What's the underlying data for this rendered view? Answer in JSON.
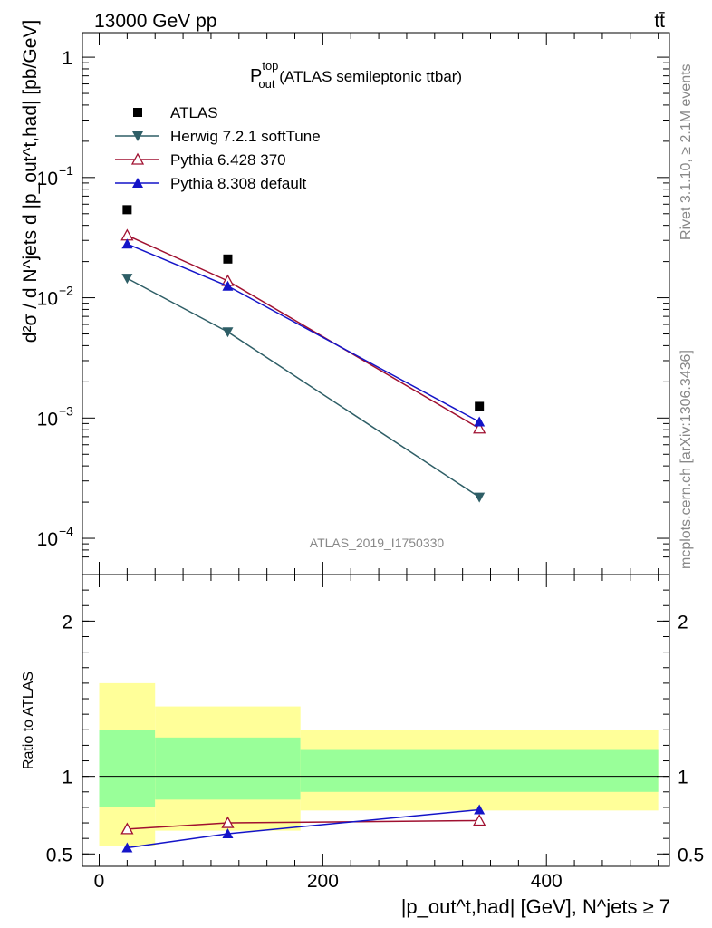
{
  "header": {
    "energy_label": "13000 GeV pp",
    "process_label": "tt̄"
  },
  "side_labels": {
    "rivet": "Rivet 3.1.10, ≥ 2.1M events",
    "mcplots": "mcplots.cern.ch [arXiv:1306.3436]"
  },
  "plot_title": {
    "main": "P",
    "sup": "top",
    "sub": "out",
    "rest": " (ATLAS semileptonic ttbar)"
  },
  "analysis_id": "ATLAS_2019_I1750330",
  "ylabel_main": "d²σ / d N^jets d |p_out^t,had| [pb/GeV]",
  "ylabel_ratio": "Ratio to ATLAS",
  "xlabel": "|p_out^t,had| [GeV], N^jets ≥ 7",
  "colors": {
    "atlas": "#000000",
    "herwig": "#2e5e66",
    "pythia6": "#a01030",
    "pythia8": "#1414c8",
    "band_outer": "#ffff99",
    "band_inner": "#99ff99"
  },
  "chart_data": [
    {
      "type": "scatter",
      "panel": "main",
      "yscale": "log",
      "ylim": [
        5e-05,
        1.6
      ],
      "xlim": [
        -15,
        510
      ],
      "yticks": [
        {
          "value": 1,
          "label": "1",
          "exp": ""
        },
        {
          "value": 0.1,
          "label": "10",
          "exp": "−1"
        },
        {
          "value": 0.01,
          "label": "10",
          "exp": "−2"
        },
        {
          "value": 0.001,
          "label": "10",
          "exp": "−3"
        },
        {
          "value": 0.0001,
          "label": "10",
          "exp": "−4"
        }
      ],
      "legend_position": "top-left",
      "series": [
        {
          "name": "ATLAS",
          "key": "atlas",
          "marker": "square",
          "line": false,
          "x": [
            25,
            115,
            340
          ],
          "y": [
            0.054,
            0.021,
            0.00125
          ]
        },
        {
          "name": "Herwig 7.2.1 softTune",
          "key": "herwig",
          "marker": "triangle-down",
          "line": true,
          "x": [
            25,
            115,
            340
          ],
          "y": [
            0.0145,
            0.0052,
            0.00022
          ]
        },
        {
          "name": "Pythia 6.428 370",
          "key": "pythia6",
          "marker": "triangle-open",
          "line": true,
          "x": [
            25,
            115,
            340
          ],
          "y": [
            0.033,
            0.0138,
            0.00082
          ]
        },
        {
          "name": "Pythia 8.308 default",
          "key": "pythia8",
          "marker": "triangle-up",
          "line": true,
          "x": [
            25,
            115,
            340
          ],
          "y": [
            0.028,
            0.0125,
            0.00093
          ]
        }
      ]
    },
    {
      "type": "line",
      "panel": "ratio",
      "ylim": [
        0.42,
        2.3
      ],
      "xlim": [
        -15,
        510
      ],
      "yticks": [
        {
          "value": 2,
          "label": "2"
        },
        {
          "value": 1,
          "label": "1"
        },
        {
          "value": 0.5,
          "label": "0.5"
        }
      ],
      "xticks": [
        {
          "value": 0,
          "label": "0"
        },
        {
          "value": 200,
          "label": "200"
        },
        {
          "value": 400,
          "label": "400"
        }
      ],
      "bins": [
        [
          0,
          50
        ],
        [
          50,
          180
        ],
        [
          180,
          500
        ]
      ],
      "band_outer": [
        [
          0.55,
          1.6
        ],
        [
          0.65,
          1.45
        ],
        [
          0.78,
          1.3
        ]
      ],
      "band_inner": [
        [
          0.8,
          1.3
        ],
        [
          0.85,
          1.25
        ],
        [
          0.9,
          1.17
        ]
      ],
      "series": [
        {
          "name": "Herwig 7.2.1 softTune",
          "key": "herwig",
          "x": [],
          "y": []
        },
        {
          "name": "Pythia 6.428 370",
          "key": "pythia6",
          "marker": "triangle-open",
          "x": [
            25,
            115,
            340
          ],
          "y": [
            0.66,
            0.7,
            0.715
          ]
        },
        {
          "name": "Pythia 8.308 default",
          "key": "pythia8",
          "marker": "triangle-up",
          "x": [
            25,
            115,
            340
          ],
          "y": [
            0.54,
            0.63,
            0.785
          ]
        }
      ]
    }
  ]
}
